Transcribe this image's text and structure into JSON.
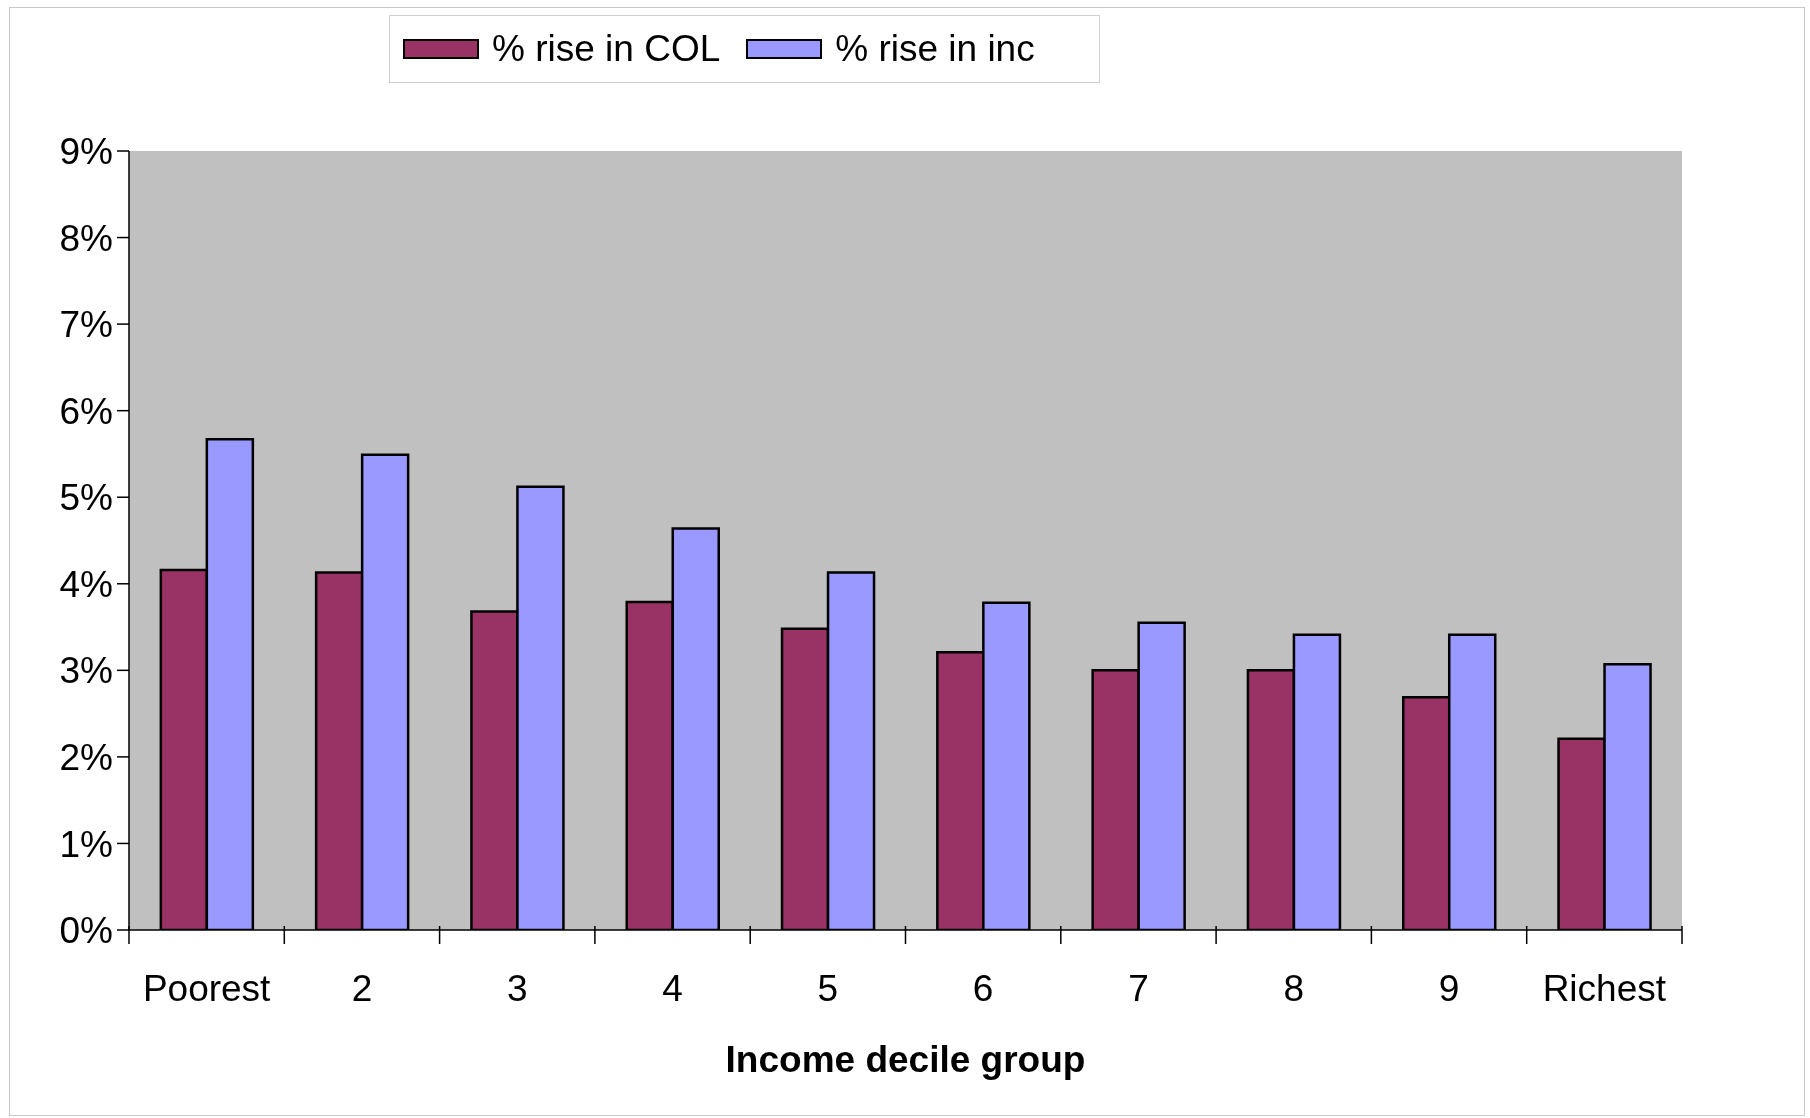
{
  "chart_data": {
    "type": "bar",
    "xlabel": "Income decile group",
    "categories": [
      "Poorest",
      "2",
      "3",
      "4",
      "5",
      "6",
      "7",
      "8",
      "9",
      "Richest"
    ],
    "series": [
      {
        "name": "% rise in COL",
        "color": "#993366",
        "values": [
          4.16,
          4.13,
          3.68,
          3.79,
          3.48,
          3.21,
          3.0,
          3.0,
          2.69,
          2.21
        ]
      },
      {
        "name": "% rise in inc",
        "color": "#9999ff",
        "values": [
          5.67,
          5.49,
          5.12,
          4.64,
          4.13,
          3.78,
          3.55,
          3.41,
          3.41,
          3.07
        ]
      }
    ],
    "ylim": [
      0,
      9
    ],
    "yticks": [
      {
        "value": 0,
        "label": "0%"
      },
      {
        "value": 1,
        "label": "1%"
      },
      {
        "value": 2,
        "label": "2%"
      },
      {
        "value": 3,
        "label": "3%"
      },
      {
        "value": 4,
        "label": "4%"
      },
      {
        "value": 5,
        "label": "5%"
      },
      {
        "value": 6,
        "label": "6%"
      },
      {
        "value": 7,
        "label": "7%"
      },
      {
        "value": 8,
        "label": "8%"
      },
      {
        "value": 9,
        "label": "9%"
      }
    ],
    "legend": "top"
  }
}
